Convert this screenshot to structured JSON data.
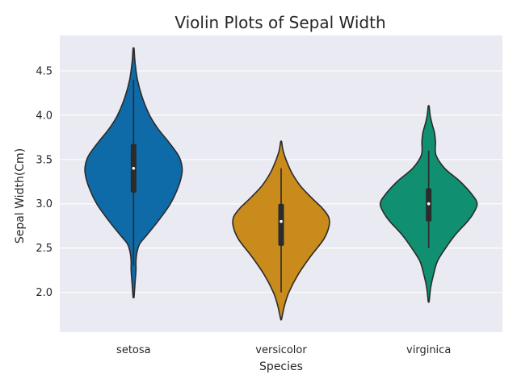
{
  "chart_data": {
    "type": "violin",
    "title": "Violin Plots of Sepal Width",
    "xlabel": "Species",
    "ylabel": "Sepal Width(Cm)",
    "categories": [
      "setosa",
      "versicolor",
      "virginica"
    ],
    "ylim": [
      1.55,
      4.9
    ],
    "yticks": [
      2.0,
      2.5,
      3.0,
      3.5,
      4.0,
      4.5
    ],
    "ytick_labels": [
      "2.0",
      "2.5",
      "3.0",
      "3.5",
      "4.0",
      "4.5"
    ],
    "grid": true,
    "background_color": "#eaeaf2",
    "series": [
      {
        "category": "setosa",
        "color": "#0f6ba8",
        "min": 2.3,
        "q1": 3.125,
        "median": 3.4,
        "q3": 3.675,
        "max": 4.4,
        "kde_y": [
          1.95,
          2.1,
          2.25,
          2.35,
          2.45,
          2.55,
          2.65,
          2.8,
          3.0,
          3.2,
          3.35,
          3.45,
          3.55,
          3.7,
          3.85,
          4.0,
          4.2,
          4.4,
          4.6,
          4.75
        ],
        "kde_width": [
          0.01,
          0.03,
          0.05,
          0.05,
          0.07,
          0.13,
          0.28,
          0.5,
          0.76,
          0.93,
          1.0,
          0.99,
          0.92,
          0.72,
          0.5,
          0.33,
          0.18,
          0.08,
          0.03,
          0.01
        ]
      },
      {
        "category": "versicolor",
        "color": "#c88b1c",
        "min": 2.0,
        "q1": 2.525,
        "median": 2.8,
        "q3": 3.0,
        "max": 3.4,
        "kde_y": [
          1.7,
          1.85,
          2.0,
          2.2,
          2.4,
          2.6,
          2.75,
          2.85,
          2.95,
          3.05,
          3.2,
          3.35,
          3.5,
          3.6,
          3.7
        ],
        "kde_width": [
          0.01,
          0.07,
          0.16,
          0.35,
          0.6,
          0.88,
          0.99,
          0.98,
          0.85,
          0.66,
          0.4,
          0.22,
          0.1,
          0.04,
          0.01
        ]
      },
      {
        "category": "virginica",
        "color": "#109070",
        "min": 2.5,
        "q1": 2.8,
        "median": 3.0,
        "q3": 3.175,
        "max": 3.6,
        "kde_y": [
          1.9,
          2.05,
          2.2,
          2.35,
          2.5,
          2.65,
          2.8,
          2.9,
          3.0,
          3.1,
          3.25,
          3.4,
          3.55,
          3.7,
          3.8,
          3.9,
          4.0,
          4.1
        ],
        "kde_width": [
          0.01,
          0.04,
          0.1,
          0.18,
          0.35,
          0.55,
          0.8,
          0.93,
          1.0,
          0.9,
          0.65,
          0.33,
          0.15,
          0.14,
          0.12,
          0.07,
          0.03,
          0.01
        ]
      }
    ]
  }
}
